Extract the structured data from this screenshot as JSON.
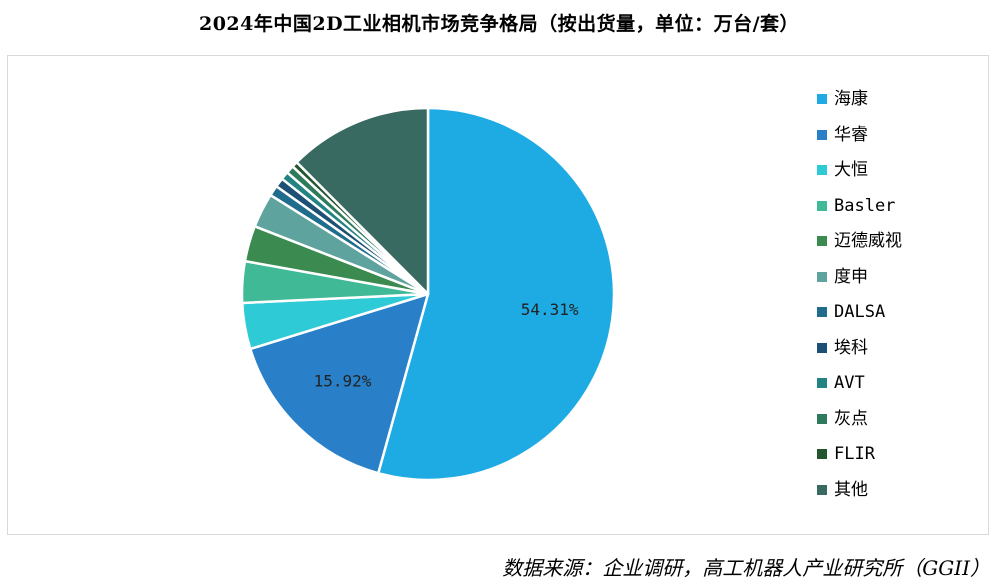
{
  "chart_data": {
    "type": "pie",
    "title": "2024年中国2D工业相机市场竞争格局（按出货量，单位：万台/套）",
    "source": "数据来源：企业调研，高工机器人产业研究所（GGII）",
    "legend_position": "right",
    "slices": [
      {
        "name": "海康",
        "value": 54.31,
        "label": "54.31%",
        "color": "#1EABE3"
      },
      {
        "name": "华睿",
        "value": 15.92,
        "label": "15.92%",
        "color": "#2980C8"
      },
      {
        "name": "大恒",
        "value": 4.0,
        "label": "",
        "color": "#2ECAD6"
      },
      {
        "name": "Basler",
        "value": 3.6,
        "label": "",
        "color": "#3FB996"
      },
      {
        "name": "迈德威视",
        "value": 3.1,
        "label": "",
        "color": "#3B8A50"
      },
      {
        "name": "度申",
        "value": 3.0,
        "label": "",
        "color": "#5FA39E"
      },
      {
        "name": "DALSA",
        "value": 0.9,
        "label": "",
        "color": "#1F6C8C"
      },
      {
        "name": "埃科",
        "value": 0.8,
        "label": "",
        "color": "#1E4F74"
      },
      {
        "name": "AVT",
        "value": 0.7,
        "label": "",
        "color": "#238383"
      },
      {
        "name": "灰点",
        "value": 0.7,
        "label": "",
        "color": "#2F7A5D"
      },
      {
        "name": "FLIR",
        "value": 0.5,
        "label": "",
        "color": "#23552E"
      },
      {
        "name": "其他",
        "value": 12.47,
        "label": "",
        "color": "#386A62"
      }
    ]
  }
}
